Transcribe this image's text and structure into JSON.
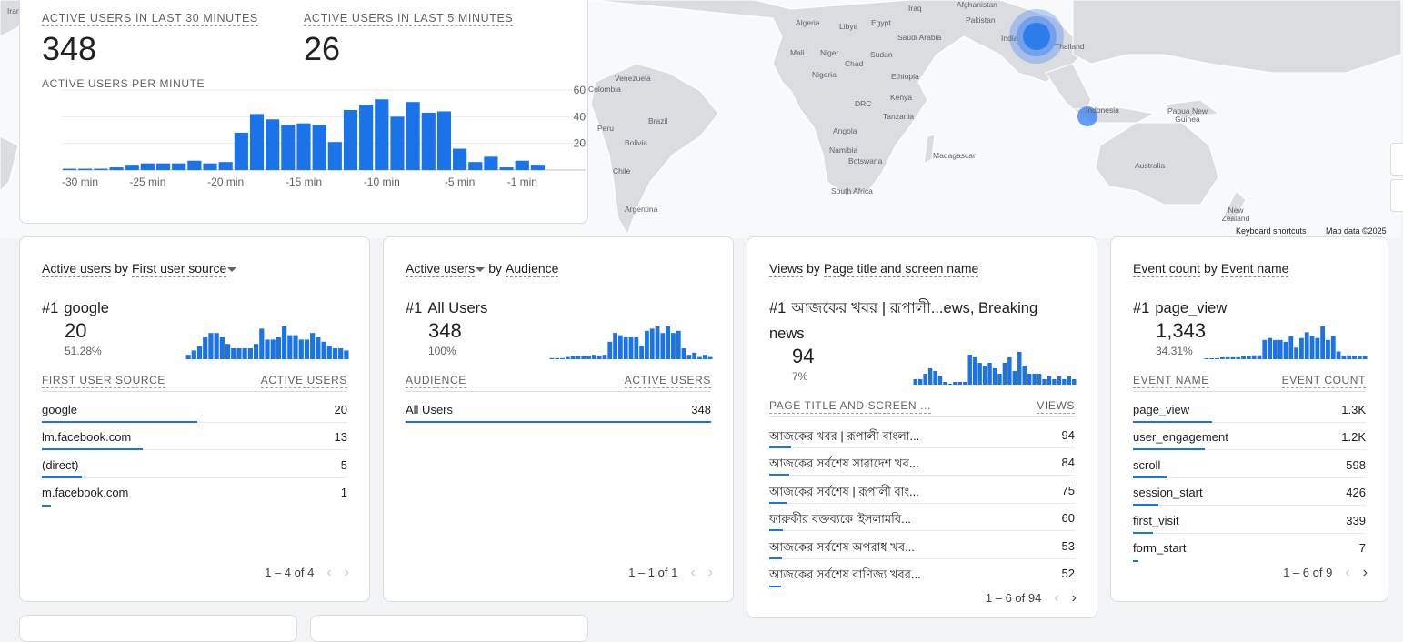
{
  "colors": {
    "accent": "#1a73e8",
    "bubble": "#4285f4"
  },
  "map": {
    "labels": [
      "Iran",
      "Afghanistan",
      "Pakistan",
      "India",
      "Thailand",
      "Algeria",
      "Libya",
      "Egypt",
      "Iraq",
      "Saudi Arabia",
      "Mali",
      "Niger",
      "Chad",
      "Sudan",
      "Nigeria",
      "Ethiopia",
      "Venezuela",
      "Colombia",
      "DRC",
      "Kenya",
      "Tanzania",
      "Brazil",
      "Peru",
      "Bolivia",
      "Angola",
      "Namibia",
      "Botswana",
      "Madagascar",
      "Chile",
      "South Africa",
      "Argentina",
      "Indonesia",
      "Papua New Guinea",
      "Australia",
      "New Zealand"
    ],
    "keyboard_shortcuts": "Keyboard shortcuts",
    "map_data": "Map data ©2025"
  },
  "realtime": {
    "kpi_30_label": "ACTIVE USERS IN LAST 30 MINUTES",
    "kpi_30_value": "348",
    "kpi_5_label": "ACTIVE USERS IN LAST 5 MINUTES",
    "kpi_5_value": "26",
    "per_minute_label": "ACTIVE USERS PER MINUTE"
  },
  "chart_data": {
    "type": "bar",
    "title": "ACTIVE USERS PER MINUTE",
    "x_tick_labels": [
      "-30 min",
      "-25 min",
      "-20 min",
      "-15 min",
      "-10 min",
      "-5 min",
      "-1 min"
    ],
    "y_ticks": [
      20,
      40,
      60
    ],
    "ylim": [
      0,
      60
    ],
    "values": [
      1,
      1,
      1,
      2,
      4,
      5,
      5,
      5,
      7,
      5,
      6,
      28,
      42,
      38,
      34,
      35,
      34,
      21,
      45,
      49,
      53,
      40,
      51,
      43,
      44,
      16,
      6,
      10,
      2,
      7,
      4
    ],
    "grid": true
  },
  "cards": [
    {
      "title_metric": "Active users",
      "title_by": "by",
      "title_dim": "First user source",
      "caret_after": "dim",
      "top_rank": "#1",
      "top_name": "google",
      "top_value": "20",
      "top_pct": "51.28%",
      "spark": [
        2,
        4,
        6,
        10,
        12,
        12,
        10,
        7,
        5,
        5,
        5,
        5,
        7,
        14,
        9,
        9,
        10,
        15,
        11,
        11,
        9,
        9,
        12,
        10,
        8,
        6,
        5,
        5,
        4
      ],
      "col1": "FIRST USER SOURCE",
      "col2": "ACTIVE USERS",
      "rows": [
        {
          "name": "google",
          "value": "20",
          "frac": 0.51
        },
        {
          "name": "lm.facebook.com",
          "value": "13",
          "frac": 0.33
        },
        {
          "name": "(direct)",
          "value": "5",
          "frac": 0.13
        },
        {
          "name": "m.facebook.com",
          "value": "1",
          "frac": 0.03
        }
      ],
      "pager": "1 – 4 of 4",
      "next_enabled": false
    },
    {
      "title_metric": "Active users",
      "title_by": "by",
      "title_dim": "Audience",
      "caret_after": "metric",
      "top_rank": "#1",
      "top_name": "All Users",
      "top_value": "348",
      "top_pct": "100%",
      "spark": [
        0.5,
        0.5,
        0.5,
        1,
        1.5,
        1.5,
        1.5,
        1.5,
        2,
        1.5,
        2,
        8,
        12,
        11,
        10,
        10,
        10,
        6,
        13,
        14,
        15,
        12,
        15,
        12,
        13,
        5,
        2,
        3,
        1,
        2,
        1
      ],
      "col1": "AUDIENCE",
      "col2": "ACTIVE USERS",
      "rows": [
        {
          "name": "All Users",
          "value": "348",
          "frac": 1.0
        }
      ],
      "pager": "1 – 1 of 1",
      "next_enabled": false
    },
    {
      "title_metric": "Views",
      "title_by": "by",
      "title_dim": "Page title and screen name",
      "caret_after": "none",
      "top_rank": "#1",
      "top_name": "আজকের খবর | রূপালী...ews, Breaking news",
      "top_value": "94",
      "top_pct": "7%",
      "spark": [
        2,
        2,
        4,
        6,
        5,
        3,
        1,
        0,
        1,
        1,
        1,
        11,
        10,
        8,
        7,
        8,
        6,
        4,
        8,
        10,
        5,
        12,
        7,
        4,
        4,
        4,
        2,
        3,
        2,
        3,
        2,
        3,
        2
      ],
      "col1": "PAGE TITLE AND SCREEN ...",
      "col2": "VIEWS",
      "rows": [
        {
          "name": "আজকের খবর | রূপালী বাংলা...",
          "value": "94",
          "frac": 0.07
        },
        {
          "name": "আজকের সর্বশেষ সারাদেশ খব...",
          "value": "84",
          "frac": 0.065
        },
        {
          "name": "আজকের সর্বশেষ | রূপালী বাং...",
          "value": "75",
          "frac": 0.058
        },
        {
          "name": "ফারুকীর বক্তব্যকে 'ইসলামবি...",
          "value": "60",
          "frac": 0.046
        },
        {
          "name": "আজকের সর্বশেষ অপরাধ খব...",
          "value": "53",
          "frac": 0.041
        },
        {
          "name": "আজকের সর্বশেষ বাণিজ্য খবর...",
          "value": "52",
          "frac": 0.04
        }
      ],
      "pager": "1 – 6 of 94",
      "next_enabled": true
    },
    {
      "title_metric": "Event count",
      "title_by": "by",
      "title_dim": "Event name",
      "caret_after": "none",
      "top_rank": "#1",
      "top_name": "page_view",
      "top_value": "1,343",
      "top_pct": "34.31%",
      "spark": [
        0.5,
        0.5,
        0.5,
        1,
        1,
        1,
        1,
        1.5,
        1.5,
        2,
        2,
        10,
        11,
        10,
        10,
        9,
        12,
        6,
        11,
        14,
        12,
        11,
        17,
        10,
        12,
        4,
        1.5,
        2,
        1.5,
        1.5,
        1.5
      ],
      "col1": "EVENT NAME",
      "col2": "EVENT COUNT",
      "rows": [
        {
          "name": "page_view",
          "value": "1.3K",
          "frac": 0.34
        },
        {
          "name": "user_engagement",
          "value": "1.2K",
          "frac": 0.31
        },
        {
          "name": "scroll",
          "value": "598",
          "frac": 0.15
        },
        {
          "name": "session_start",
          "value": "426",
          "frac": 0.11
        },
        {
          "name": "first_visit",
          "value": "339",
          "frac": 0.087
        },
        {
          "name": "form_start",
          "value": "7",
          "frac": 0.002
        }
      ],
      "pager": "1 – 6 of 9",
      "next_enabled": true
    }
  ]
}
